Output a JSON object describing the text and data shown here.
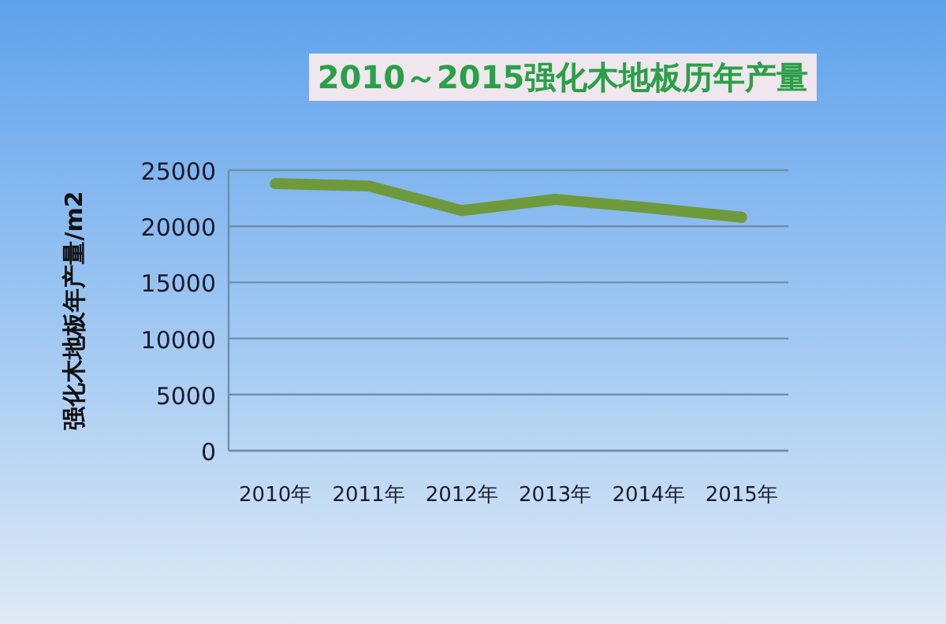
{
  "chart_data": {
    "type": "line",
    "title": "2010～2015强化木地板历年产量",
    "ylabel": "强化木地板年产量/m2",
    "categories": [
      "2010年",
      "2011年",
      "2012年",
      "2013年",
      "2014年",
      "2015年"
    ],
    "series": [
      {
        "color": "#6f9a3c",
        "values": [
          23800,
          23600,
          21400,
          22400,
          21650,
          20800
        ]
      }
    ],
    "ylim": [
      0,
      25000
    ],
    "yticks": [
      0,
      5000,
      10000,
      15000,
      20000,
      25000
    ],
    "grid": "y",
    "marker": "none",
    "line_style": "solid"
  }
}
